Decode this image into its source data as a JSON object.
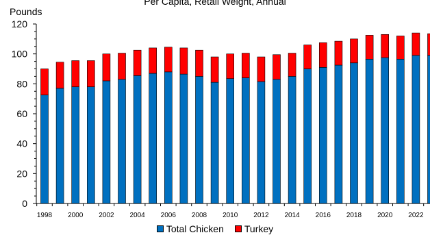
{
  "chart_data": {
    "type": "bar",
    "stacked": true,
    "subtitle": "Per Capita, Retail Weight, Annual",
    "ylabel": "Pounds",
    "xlabel": "",
    "ylim": [
      0,
      120
    ],
    "yticks": [
      0,
      20,
      40,
      60,
      80,
      100,
      120
    ],
    "categories": [
      "1998",
      "1999",
      "2000",
      "2001",
      "2002",
      "2003",
      "2004",
      "2005",
      "2006",
      "2007",
      "2008",
      "2009",
      "2010",
      "2011",
      "2012",
      "2013",
      "2014",
      "2015",
      "2016",
      "2017",
      "2018",
      "2019",
      "2020",
      "2021",
      "2022",
      "2023"
    ],
    "xtick_labels": [
      "1998",
      "2000",
      "2002",
      "2004",
      "2006",
      "2008",
      "2010",
      "2012",
      "2014",
      "2016",
      "2018",
      "2020",
      "2022"
    ],
    "series": [
      {
        "name": "Total Chicken",
        "color": "#0070C0",
        "values": [
          72.5,
          77,
          78,
          78,
          82,
          83,
          85.5,
          87,
          88,
          86.5,
          85,
          81,
          83.5,
          84,
          81.5,
          83,
          85,
          90,
          91,
          92.5,
          94,
          96.5,
          97.5,
          96.5,
          99,
          99
        ]
      },
      {
        "name": "Turkey",
        "color": "#FF0000",
        "values": [
          17.5,
          17.5,
          17.5,
          17.5,
          18,
          17.5,
          17,
          17,
          16.5,
          17.5,
          17.5,
          17,
          16.5,
          16.5,
          16.5,
          16.5,
          15.5,
          16,
          16.5,
          16,
          16,
          16,
          15.5,
          15.5,
          15,
          14.5
        ]
      }
    ],
    "grid": false,
    "legend_position": "bottom-center"
  }
}
